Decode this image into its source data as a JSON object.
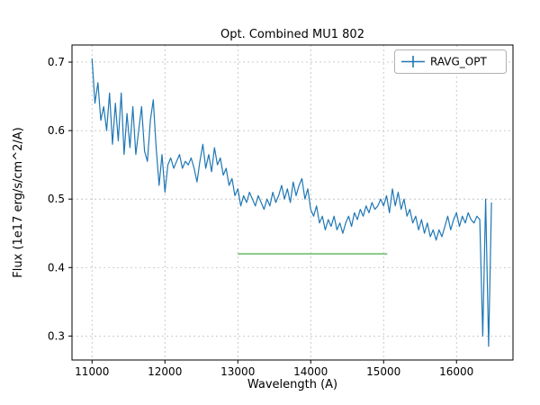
{
  "chart_data": {
    "type": "line",
    "title": "Opt. Combined MU1 802",
    "xlabel": "Wavelength (A)",
    "ylabel": "Flux (1e17 erg/s/cm^2/A)",
    "xlim": [
      10725,
      16775
    ],
    "ylim": [
      0.265,
      0.725
    ],
    "xticks": [
      "11000",
      "12000",
      "13000",
      "14000",
      "15000",
      "16000"
    ],
    "yticks": [
      "0.3",
      "0.4",
      "0.5",
      "0.6",
      "0.7"
    ],
    "grid": true,
    "grid_color": "#bbbbbb",
    "legend": {
      "position": "upper right",
      "entries": [
        "RAVG_OPT"
      ]
    },
    "series": [
      {
        "name": "RAVG_OPT",
        "color": "#1f77b4",
        "x_start": 11000,
        "x_step": 40,
        "values": [
          0.705,
          0.64,
          0.67,
          0.615,
          0.635,
          0.6,
          0.655,
          0.58,
          0.64,
          0.585,
          0.655,
          0.565,
          0.625,
          0.575,
          0.635,
          0.565,
          0.6,
          0.635,
          0.57,
          0.555,
          0.615,
          0.645,
          0.575,
          0.52,
          0.565,
          0.51,
          0.55,
          0.56,
          0.545,
          0.555,
          0.565,
          0.545,
          0.555,
          0.55,
          0.56,
          0.545,
          0.525,
          0.555,
          0.58,
          0.545,
          0.565,
          0.54,
          0.575,
          0.55,
          0.56,
          0.535,
          0.545,
          0.52,
          0.53,
          0.505,
          0.515,
          0.49,
          0.505,
          0.495,
          0.51,
          0.5,
          0.49,
          0.505,
          0.495,
          0.485,
          0.5,
          0.49,
          0.51,
          0.495,
          0.505,
          0.52,
          0.5,
          0.515,
          0.495,
          0.525,
          0.505,
          0.52,
          0.53,
          0.5,
          0.515,
          0.485,
          0.475,
          0.49,
          0.465,
          0.475,
          0.455,
          0.47,
          0.46,
          0.475,
          0.455,
          0.465,
          0.45,
          0.465,
          0.475,
          0.46,
          0.48,
          0.47,
          0.485,
          0.475,
          0.49,
          0.48,
          0.495,
          0.485,
          0.49,
          0.5,
          0.49,
          0.505,
          0.48,
          0.515,
          0.49,
          0.51,
          0.485,
          0.5,
          0.475,
          0.485,
          0.465,
          0.475,
          0.455,
          0.47,
          0.45,
          0.465,
          0.445,
          0.455,
          0.44,
          0.455,
          0.445,
          0.46,
          0.475,
          0.455,
          0.47,
          0.48,
          0.46,
          0.475,
          0.465,
          0.48,
          0.47,
          0.465,
          0.475,
          0.47,
          0.3,
          0.5,
          0.285,
          0.495
        ]
      }
    ],
    "reference_line": {
      "name": "flat-segment",
      "color": "#85c785",
      "y": 0.42,
      "x_start": 13000,
      "x_end": 15050
    }
  }
}
